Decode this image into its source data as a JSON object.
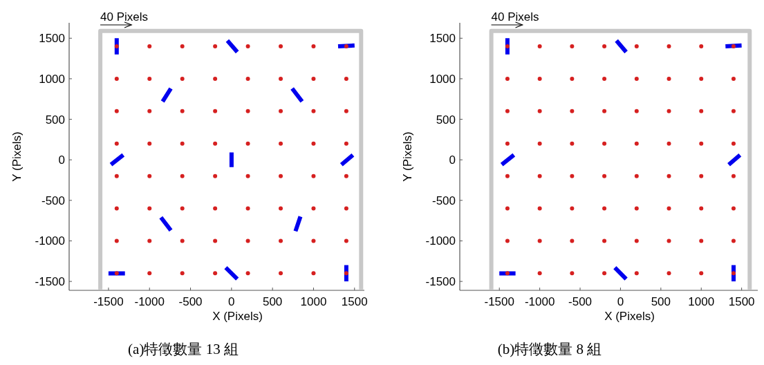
{
  "chart_data": [
    {
      "type": "scatter",
      "title": "(a)特徵數量 13 組",
      "xlabel": "X (Pixels)",
      "ylabel": "Y (Pixels)",
      "xlim": [
        -1980,
        1620
      ],
      "ylim": [
        -1610,
        1690
      ],
      "xticks": [
        -1500,
        -1000,
        -500,
        0,
        500,
        1000,
        1500
      ],
      "yticks": [
        -1500,
        -1000,
        -500,
        0,
        500,
        1000,
        1500
      ],
      "annotations": [
        "40 Pixels"
      ],
      "series": [
        {
          "type": "line",
          "color": "#c8c8c8",
          "x": [
            -1600,
            -1600,
            1580,
            1580
          ],
          "values": [
            -1600,
            1590,
            1590,
            -1600
          ]
        },
        {
          "type": "line",
          "color": "#0000ee",
          "x": [
            -1400,
            -1400,
            null,
            -50,
            70,
            null,
            1300,
            1500,
            null,
            -840,
            -740,
            null,
            740,
            860,
            null,
            -1470,
            -1320,
            null,
            0,
            0,
            null,
            1340,
            1480,
            null,
            -860,
            -740,
            null,
            840,
            780,
            null,
            -1500,
            -1300,
            null,
            -70,
            70,
            null,
            1400,
            1400
          ],
          "values": [
            1300,
            1500,
            null,
            1470,
            1330,
            null,
            1400,
            1410,
            null,
            720,
            880,
            null,
            880,
            720,
            null,
            -60,
            60,
            null,
            -90,
            90,
            null,
            -60,
            60,
            null,
            -710,
            -870,
            null,
            -700,
            -880,
            null,
            -1400,
            -1400,
            null,
            -1330,
            -1470,
            null,
            -1300,
            -1500
          ]
        },
        {
          "color": "#d62020",
          "marker": "circle",
          "x": [
            -1400,
            -1000,
            -600,
            -200,
            200,
            600,
            1000,
            1400,
            -1400,
            -1000,
            -600,
            -200,
            200,
            600,
            1000,
            1400,
            -1400,
            -1000,
            -600,
            -200,
            200,
            600,
            1000,
            1400,
            -1400,
            -1000,
            -600,
            -200,
            200,
            600,
            1000,
            1400,
            -1400,
            -1000,
            -600,
            -200,
            200,
            600,
            1000,
            1400,
            -1400,
            -1000,
            -600,
            -200,
            200,
            600,
            1000,
            1400,
            -1400,
            -1000,
            -600,
            -200,
            200,
            600,
            1000,
            1400,
            -1400,
            -1000,
            -600,
            -200,
            200,
            600,
            1000,
            1400
          ],
          "values": [
            1400,
            1400,
            1400,
            1400,
            1400,
            1400,
            1400,
            1400,
            1000,
            1000,
            1000,
            1000,
            1000,
            1000,
            1000,
            1000,
            600,
            600,
            600,
            600,
            600,
            600,
            600,
            600,
            200,
            200,
            200,
            200,
            200,
            200,
            200,
            200,
            -200,
            -200,
            -200,
            -200,
            -200,
            -200,
            -200,
            -200,
            -600,
            -600,
            -600,
            -600,
            -600,
            -600,
            -600,
            -600,
            -1000,
            -1000,
            -1000,
            -1000,
            -1000,
            -1000,
            -1000,
            -1000,
            -1400,
            -1400,
            -1400,
            -1400,
            -1400,
            -1400,
            -1400,
            -1400
          ]
        }
      ]
    },
    {
      "type": "scatter",
      "title": "(b)特徵數量 8 組",
      "xlabel": "X (Pixels)",
      "ylabel": "Y (Pixels)",
      "xlim": [
        -1990,
        1700
      ],
      "ylim": [
        -1610,
        1690
      ],
      "xticks": [
        -1500,
        -1000,
        -500,
        0,
        500,
        1000,
        1500
      ],
      "yticks": [
        -1500,
        -1000,
        -500,
        0,
        500,
        1000,
        1500
      ],
      "annotations": [
        "40 Pixels"
      ],
      "series": [
        {
          "type": "line",
          "color": "#c8c8c8",
          "x": [
            -1600,
            -1600,
            1600,
            1600
          ],
          "values": [
            -1600,
            1590,
            1590,
            -1600
          ]
        },
        {
          "type": "line",
          "color": "#0000ee",
          "x": [
            -1400,
            -1400,
            null,
            -50,
            70,
            null,
            1300,
            1500,
            null,
            -1470,
            -1320,
            null,
            1340,
            1480,
            null,
            -1500,
            -1300,
            null,
            -70,
            70,
            null,
            1400,
            1400
          ],
          "values": [
            1300,
            1500,
            null,
            1470,
            1330,
            null,
            1400,
            1410,
            null,
            -60,
            60,
            null,
            -60,
            60,
            null,
            -1400,
            -1400,
            null,
            -1330,
            -1470,
            null,
            -1300,
            -1500
          ]
        },
        {
          "color": "#d62020",
          "marker": "circle",
          "x": [
            -1400,
            -1000,
            -600,
            -200,
            200,
            600,
            1000,
            1400,
            -1400,
            -1000,
            -600,
            -200,
            200,
            600,
            1000,
            1400,
            -1400,
            -1000,
            -600,
            -200,
            200,
            600,
            1000,
            1400,
            -1400,
            -1000,
            -600,
            -200,
            200,
            600,
            1000,
            1400,
            -1400,
            -1000,
            -600,
            -200,
            200,
            600,
            1000,
            1400,
            -1400,
            -1000,
            -600,
            -200,
            200,
            600,
            1000,
            1400,
            -1400,
            -1000,
            -600,
            -200,
            200,
            600,
            1000,
            1400,
            -1400,
            -1000,
            -600,
            -200,
            200,
            600,
            1000,
            1400
          ],
          "values": [
            1400,
            1400,
            1400,
            1400,
            1400,
            1400,
            1400,
            1400,
            1000,
            1000,
            1000,
            1000,
            1000,
            1000,
            1000,
            1000,
            600,
            600,
            600,
            600,
            600,
            600,
            600,
            600,
            200,
            200,
            200,
            200,
            200,
            200,
            200,
            200,
            -200,
            -200,
            -200,
            -200,
            -200,
            -200,
            -200,
            -200,
            -600,
            -600,
            -600,
            -600,
            -600,
            -600,
            -600,
            -600,
            -1000,
            -1000,
            -1000,
            -1000,
            -1000,
            -1000,
            -1000,
            -1000,
            -1400,
            -1400,
            -1400,
            -1400,
            -1400,
            -1400,
            -1400,
            -1400
          ]
        }
      ]
    }
  ]
}
